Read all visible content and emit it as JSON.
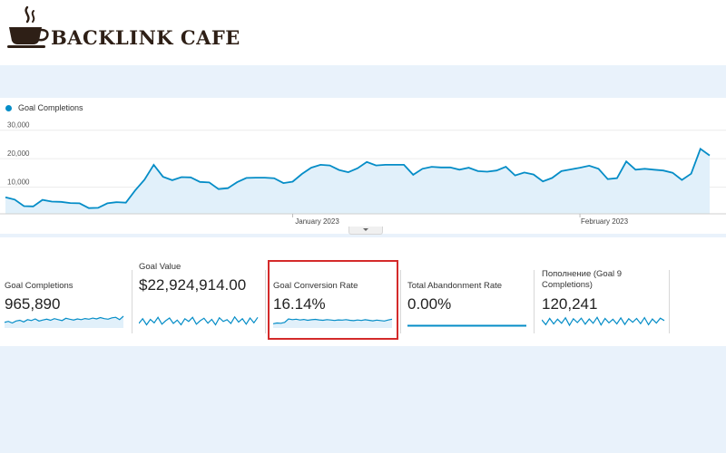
{
  "brand": {
    "name": "BACKLINK CAFE"
  },
  "colors": {
    "accent": "#058dc7",
    "fill": "#e1f0fa",
    "highlight": "#d42a2a",
    "brand": "#2e1f16"
  },
  "chart": {
    "legend": "Goal Completions",
    "month_labels": [
      "January 2023",
      "February 2023"
    ]
  },
  "chart_data": {
    "type": "area",
    "series": [
      {
        "name": "Goal Completions",
        "values": [
          5800,
          5000,
          2700,
          2600,
          4900,
          4300,
          4200,
          3800,
          3700,
          2000,
          2100,
          3700,
          4100,
          3900,
          8200,
          12000,
          17200,
          13000,
          11800,
          12900,
          12800,
          11200,
          11000,
          8700,
          9000,
          11100,
          12600,
          12700,
          12700,
          12500,
          10800,
          11300,
          14000,
          16200,
          17200,
          17000,
          15400,
          14600,
          16000,
          18200,
          17000,
          17200,
          17200,
          17200,
          13700,
          15800,
          16500,
          16300,
          16300,
          15500,
          16200,
          15000,
          14800,
          15200,
          16500,
          13500,
          14500,
          13800,
          11400,
          12600,
          15000,
          15600,
          16200,
          16900,
          15800,
          12200,
          12500,
          18400,
          15500,
          15800,
          15500,
          15200,
          14400,
          11900,
          14100,
          22800,
          20500
        ]
      }
    ],
    "y_ticks": [
      "30,000",
      "20,000",
      "10,000"
    ],
    "ylim": [
      0,
      35000
    ],
    "x_labels": [
      "January 2023",
      "February 2023"
    ],
    "grid": true,
    "legend": "top-left"
  },
  "metrics": [
    {
      "title": "Goal Completions",
      "value": "965,890",
      "spark": [
        0.35,
        0.42,
        0.3,
        0.45,
        0.5,
        0.38,
        0.55,
        0.48,
        0.6,
        0.45,
        0.52,
        0.58,
        0.5,
        0.62,
        0.55,
        0.48,
        0.65,
        0.58,
        0.52,
        0.6,
        0.55,
        0.63,
        0.58,
        0.66,
        0.6,
        0.7,
        0.62,
        0.58,
        0.68,
        0.72,
        0.55,
        0.8
      ],
      "spark_type": "area"
    },
    {
      "title": "Goal Value",
      "value": "$22,924,914.00",
      "spark": [
        0.4,
        0.75,
        0.3,
        0.7,
        0.45,
        0.85,
        0.35,
        0.6,
        0.8,
        0.4,
        0.65,
        0.3,
        0.75,
        0.55,
        0.85,
        0.35,
        0.6,
        0.78,
        0.42,
        0.7,
        0.3,
        0.82,
        0.55,
        0.68,
        0.4,
        0.88,
        0.5,
        0.75,
        0.35,
        0.8,
        0.45,
        0.85
      ],
      "spark_type": "line"
    },
    {
      "title": "Goal Conversion Rate",
      "value": "16.14%",
      "spark": [
        0.25,
        0.3,
        0.28,
        0.35,
        0.6,
        0.55,
        0.58,
        0.52,
        0.56,
        0.5,
        0.54,
        0.57,
        0.53,
        0.5,
        0.55,
        0.52,
        0.49,
        0.53,
        0.51,
        0.55,
        0.5,
        0.47,
        0.52,
        0.49,
        0.54,
        0.5,
        0.46,
        0.51,
        0.48,
        0.45,
        0.52,
        0.58
      ],
      "spark_type": "area"
    },
    {
      "title": "Total Abandonment Rate",
      "value": "0.00%",
      "spark": [
        0.1,
        0.1,
        0.1,
        0.1,
        0.1,
        0.1,
        0.1,
        0.1,
        0.1,
        0.1,
        0.1,
        0.1,
        0.1,
        0.1,
        0.1,
        0.1
      ],
      "spark_type": "line"
    },
    {
      "title": "Пополнение (Goal 9 Completions)",
      "value": "120,241",
      "spark": [
        0.6,
        0.25,
        0.7,
        0.3,
        0.65,
        0.35,
        0.75,
        0.2,
        0.68,
        0.4,
        0.72,
        0.28,
        0.66,
        0.35,
        0.78,
        0.22,
        0.7,
        0.38,
        0.64,
        0.3,
        0.74,
        0.26,
        0.68,
        0.42,
        0.7,
        0.32,
        0.76,
        0.24,
        0.66,
        0.36,
        0.72,
        0.55
      ],
      "spark_type": "line"
    }
  ]
}
